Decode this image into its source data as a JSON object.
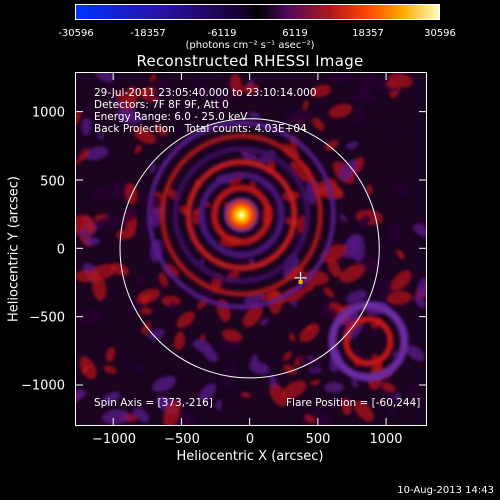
{
  "colorbar": {
    "ticks": [
      "-30596",
      "-18357",
      "-6119",
      "6119",
      "18357",
      "30596"
    ],
    "units": "(photons cm⁻² s⁻¹ asec⁻²)"
  },
  "chart_data": {
    "type": "heatmap",
    "title": "Reconstructed RHESSI Image",
    "xlabel": "Heliocentric X (arcsec)",
    "ylabel": "Heliocentric Y (arcsec)",
    "xlim": [
      -1280,
      1300
    ],
    "ylim": [
      -1300,
      1290
    ],
    "xticks": [
      -1000,
      -500,
      0,
      500,
      1000
    ],
    "yticks": [
      1000,
      500,
      0,
      -500,
      -1000
    ],
    "xtick_labels": [
      "−1000",
      "−500",
      "0",
      "500",
      "1000"
    ],
    "ytick_labels": [
      "1000",
      "500",
      "0",
      "−500",
      "−1000"
    ],
    "solar_disk": {
      "cx": 0,
      "cy": 0,
      "r": 950
    },
    "bright_source": {
      "x": -60,
      "y": 244
    },
    "flare_marker": {
      "x": 373,
      "y": -216
    },
    "color_range": [
      -30596,
      30596
    ]
  },
  "info": {
    "line1": "29-Jul-2011 23:05:40.000 to 23:10:14.000",
    "line2": "Detectors: 7F 8F 9F, Att 0",
    "line3": "Energy Range: 6.0 - 25.0 keV",
    "line4": "Back Projection   Total counts: 4.03E+04",
    "spin_axis": "Spin Axis = [373,-216]",
    "flare_position": "Flare Position = [-60,244]"
  },
  "footer": "10-Aug-2013 14:43"
}
